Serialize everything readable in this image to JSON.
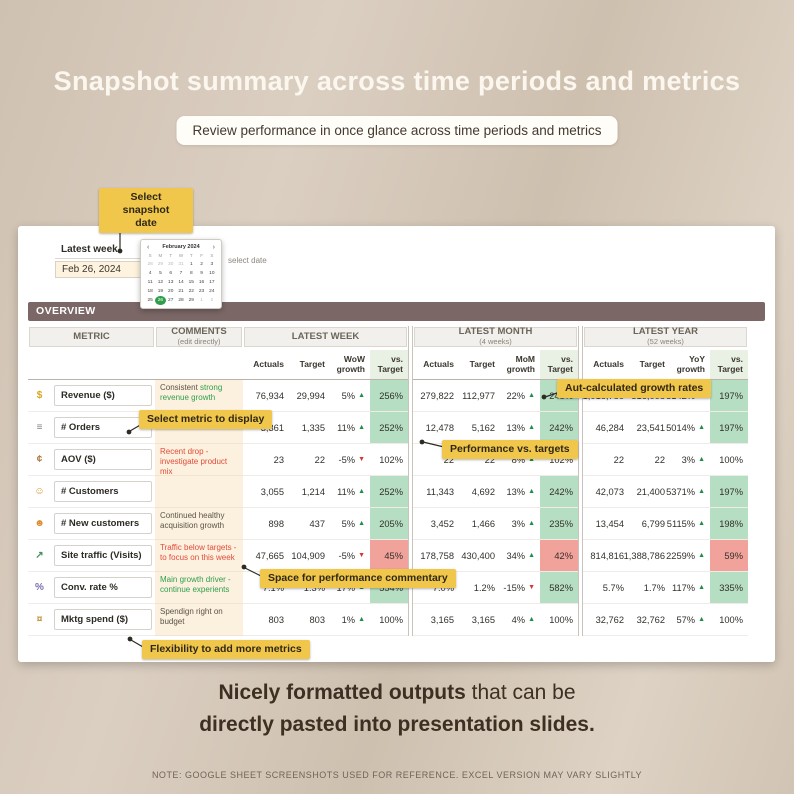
{
  "page": {
    "title": "Snapshot summary across time periods and metrics",
    "subtitle": "Review performance in once glance across time periods and metrics",
    "bottom_line1_bold": "Nicely formatted outputs",
    "bottom_line1_rest": " that can be",
    "bottom_line2": "directly pasted into presentation slides.",
    "footer_note": "NOTE: GOOGLE SHEET SCREENSHOTS USED FOR REFERENCE. EXCEL VERSION MAY VARY SLIGHTLY"
  },
  "callouts": {
    "snapshot_l1": "Select snapshot",
    "snapshot_l2": "date",
    "select_metric": "Select metric to display",
    "growth_rates": "Aut-calculated growth rates",
    "performance": "Performance vs. targets",
    "commentary": "Space for performance commentary",
    "flexibility": "Flexibility to add more metrics"
  },
  "sheet": {
    "date_selector": {
      "label": "Latest week",
      "value": "Feb 26, 2024"
    },
    "calendar": {
      "month": "February 2024",
      "prev_icon": "‹",
      "next_icon": "›",
      "hint": "select date",
      "weekdays": [
        "S",
        "M",
        "T",
        "W",
        "T",
        "F",
        "S"
      ],
      "days": [
        "28",
        "29",
        "30",
        "31",
        "1",
        "2",
        "3",
        "4",
        "5",
        "6",
        "7",
        "8",
        "9",
        "10",
        "11",
        "12",
        "13",
        "14",
        "15",
        "16",
        "17",
        "18",
        "19",
        "20",
        "21",
        "22",
        "23",
        "24",
        "25",
        "26",
        "27",
        "28",
        "29",
        "1",
        "2"
      ],
      "selected_index": 29,
      "muted_indices": [
        0,
        1,
        2,
        3,
        33,
        34
      ]
    },
    "overview_label": "OVERVIEW",
    "table": {
      "col_metric": "METRIC",
      "col_comments": "COMMENTS",
      "col_comments_sub": "(edit directly)",
      "actuals_label": "Actuals",
      "target_label": "Target",
      "vs_lines": [
        "vs.",
        "Target"
      ],
      "colors": {
        "good_fill": "#b6dec3",
        "bad_fill": "#f0a29b",
        "up_arrow": "#1e8e45",
        "down_arrow": "#d63b2f"
      },
      "groups": [
        {
          "id": "latest-week",
          "label": "LATEST WEEK",
          "sub": "",
          "growth_lines": [
            "WoW",
            "growth"
          ]
        },
        {
          "id": "latest-month",
          "label": "LATEST MONTH",
          "sub": "(4 weeks)",
          "growth_lines": [
            "MoM",
            "growth"
          ]
        },
        {
          "id": "latest-year",
          "label": "LATEST YEAR",
          "sub": "(52 weeks)",
          "growth_lines": [
            "YoY",
            "growth"
          ]
        }
      ],
      "rows": [
        {
          "icon": {
            "glyph": "$",
            "color": "#d9a41b",
            "name": "revenue-icon"
          },
          "metric": "Revenue ($)",
          "comment": [
            {
              "t": "Consistent ",
              "c": "plain"
            },
            {
              "t": "strong revenue growth",
              "c": "green"
            }
          ],
          "cells": [
            {
              "v": "76,934"
            },
            {
              "v": "29,994"
            },
            {
              "v": "5%",
              "a": "up"
            },
            {
              "v": "256%",
              "bg": "green"
            },
            {
              "v": "279,822"
            },
            {
              "v": "112,977"
            },
            {
              "v": "22%",
              "a": "up"
            },
            {
              "v": "248%",
              "bg": "green"
            },
            {
              "v": "1,016,780"
            },
            {
              "v": "516,008"
            },
            {
              "v": "5142%",
              "a": "up"
            },
            {
              "v": "197%",
              "bg": "green"
            }
          ]
        },
        {
          "icon": {
            "glyph": "≡",
            "color": "#8a8379",
            "name": "orders-icon"
          },
          "metric": "# Orders",
          "comment": [],
          "cells": [
            {
              "v": "3,361"
            },
            {
              "v": "1,335"
            },
            {
              "v": "11%",
              "a": "up"
            },
            {
              "v": "252%",
              "bg": "green"
            },
            {
              "v": "12,478"
            },
            {
              "v": "5,162"
            },
            {
              "v": "13%",
              "a": "up"
            },
            {
              "v": "242%",
              "bg": "green"
            },
            {
              "v": "46,284"
            },
            {
              "v": "23,541"
            },
            {
              "v": "5014%",
              "a": "up"
            },
            {
              "v": "197%",
              "bg": "green"
            }
          ]
        },
        {
          "icon": {
            "glyph": "¢",
            "color": "#b07c3f",
            "name": "aov-icon"
          },
          "metric": "AOV ($)",
          "comment": [
            {
              "t": "Recent drop - investigate product mix",
              "c": "red"
            }
          ],
          "cells": [
            {
              "v": "23"
            },
            {
              "v": "22"
            },
            {
              "v": "-5%",
              "a": "down"
            },
            {
              "v": "102%"
            },
            {
              "v": "22"
            },
            {
              "v": "22"
            },
            {
              "v": "8%",
              "a": "up"
            },
            {
              "v": "102%"
            },
            {
              "v": "22"
            },
            {
              "v": "22"
            },
            {
              "v": "3%",
              "a": "up"
            },
            {
              "v": "100%"
            }
          ]
        },
        {
          "icon": {
            "glyph": "☺",
            "color": "#d98f2b",
            "name": "customers-icon"
          },
          "metric": "# Customers",
          "comment": [],
          "cells": [
            {
              "v": "3,055"
            },
            {
              "v": "1,214"
            },
            {
              "v": "11%",
              "a": "up"
            },
            {
              "v": "252%",
              "bg": "green"
            },
            {
              "v": "11,343"
            },
            {
              "v": "4,692"
            },
            {
              "v": "13%",
              "a": "up"
            },
            {
              "v": "242%",
              "bg": "green"
            },
            {
              "v": "42,073"
            },
            {
              "v": "21,400"
            },
            {
              "v": "5371%",
              "a": "up"
            },
            {
              "v": "197%",
              "bg": "green"
            }
          ]
        },
        {
          "icon": {
            "glyph": "☻",
            "color": "#d98f2b",
            "name": "new-customers-icon"
          },
          "metric": "# New customers",
          "comment": [
            {
              "t": "Continued healthy acquisition growth",
              "c": "plain"
            }
          ],
          "cells": [
            {
              "v": "898"
            },
            {
              "v": "437"
            },
            {
              "v": "5%",
              "a": "up"
            },
            {
              "v": "205%",
              "bg": "green"
            },
            {
              "v": "3,452"
            },
            {
              "v": "1,466"
            },
            {
              "v": "3%",
              "a": "up"
            },
            {
              "v": "235%",
              "bg": "green"
            },
            {
              "v": "13,454"
            },
            {
              "v": "6,799"
            },
            {
              "v": "5115%",
              "a": "up"
            },
            {
              "v": "198%",
              "bg": "green"
            }
          ]
        },
        {
          "icon": {
            "glyph": "↗",
            "color": "#4a8f5d",
            "name": "site-traffic-icon"
          },
          "metric": "Site traffic (Visits)",
          "comment": [
            {
              "t": "Traffic below targets - to focus on this week",
              "c": "red"
            }
          ],
          "cells": [
            {
              "v": "47,665"
            },
            {
              "v": "104,909"
            },
            {
              "v": "-5%",
              "a": "down"
            },
            {
              "v": "45%",
              "bg": "red"
            },
            {
              "v": "178,758"
            },
            {
              "v": "430,400"
            },
            {
              "v": "34%",
              "a": "up"
            },
            {
              "v": "42%",
              "bg": "red"
            },
            {
              "v": "814,816"
            },
            {
              "v": "1,388,786"
            },
            {
              "v": "2259%",
              "a": "up"
            },
            {
              "v": "59%",
              "bg": "red"
            }
          ]
        },
        {
          "icon": {
            "glyph": "%",
            "color": "#7a6fb0",
            "name": "conv-rate-icon"
          },
          "metric": "Conv. rate %",
          "comment": [
            {
              "t": "Main growth driver - continue experients",
              "c": "green"
            }
          ],
          "cells": [
            {
              "v": "7.1%"
            },
            {
              "v": "1.3%"
            },
            {
              "v": "17%",
              "a": "up"
            },
            {
              "v": "554%",
              "bg": "green"
            },
            {
              "v": "7.0%"
            },
            {
              "v": "1.2%"
            },
            {
              "v": "-15%",
              "a": "down"
            },
            {
              "v": "582%",
              "bg": "green"
            },
            {
              "v": "5.7%"
            },
            {
              "v": "1.7%"
            },
            {
              "v": "117%",
              "a": "up"
            },
            {
              "v": "335%",
              "bg": "green"
            }
          ]
        },
        {
          "icon": {
            "glyph": "¤",
            "color": "#c2973a",
            "name": "mktg-spend-icon"
          },
          "metric": "Mktg spend ($)",
          "comment": [
            {
              "t": "Spendign right on budget",
              "c": "plain"
            }
          ],
          "cells": [
            {
              "v": "803"
            },
            {
              "v": "803"
            },
            {
              "v": "1%",
              "a": "up"
            },
            {
              "v": "100%"
            },
            {
              "v": "3,165"
            },
            {
              "v": "3,165"
            },
            {
              "v": "4%",
              "a": "up"
            },
            {
              "v": "100%"
            },
            {
              "v": "32,762"
            },
            {
              "v": "32,762"
            },
            {
              "v": "57%",
              "a": "up"
            },
            {
              "v": "100%"
            }
          ]
        }
      ]
    }
  }
}
